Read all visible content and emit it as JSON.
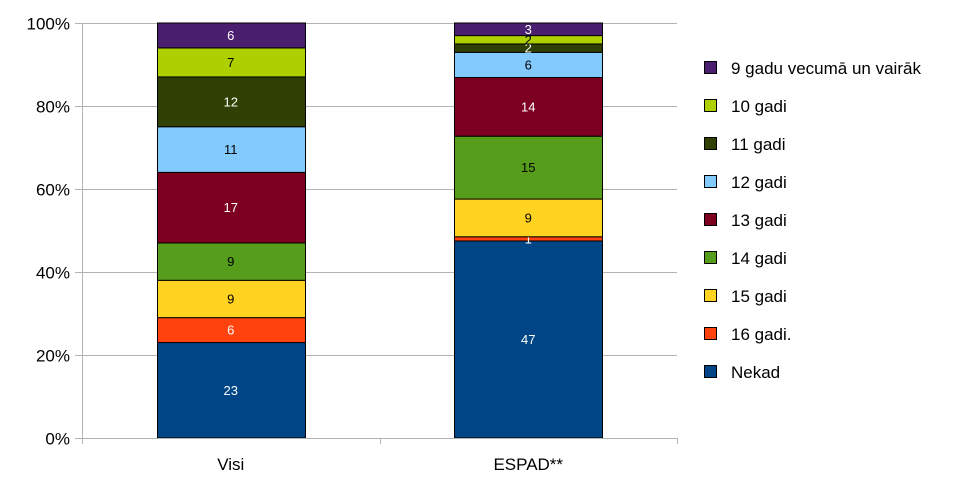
{
  "chart_data": {
    "type": "bar",
    "stacked": true,
    "percent_stacked": true,
    "categories": [
      "Visi",
      "ESPAD**"
    ],
    "y_ticks": [
      "0%",
      "20%",
      "40%",
      "60%",
      "80%",
      "100%"
    ],
    "ylim": [
      0,
      100
    ],
    "grid": true,
    "legend_position": "right",
    "series": [
      {
        "name": "Nekad",
        "color": "#004586",
        "label_color": "#ffffff",
        "values": [
          23,
          47
        ]
      },
      {
        "name": "16 gadi.",
        "color": "#ff420e",
        "label_color": "#ffffff",
        "values": [
          6,
          1
        ]
      },
      {
        "name": "15 gadi",
        "color": "#ffd320",
        "label_color": "#000000",
        "values": [
          9,
          9
        ]
      },
      {
        "name": "14 gadi",
        "color": "#579d1c",
        "label_color": "#000000",
        "values": [
          9,
          15
        ]
      },
      {
        "name": "13 gadi",
        "color": "#7e0021",
        "label_color": "#ffffff",
        "values": [
          17,
          14
        ]
      },
      {
        "name": "12 gadi",
        "color": "#83caff",
        "label_color": "#000000",
        "values": [
          11,
          6
        ]
      },
      {
        "name": "11 gadi",
        "color": "#314004",
        "label_color": "#ffffff",
        "values": [
          12,
          2
        ]
      },
      {
        "name": "10 gadi",
        "color": "#aecf00",
        "label_color": "#000000",
        "values": [
          7,
          2
        ]
      },
      {
        "name": "9 gadu vecumā un vairāk",
        "color": "#4b1f6f",
        "label_color": "#ffffff",
        "values": [
          6,
          3
        ]
      }
    ]
  }
}
